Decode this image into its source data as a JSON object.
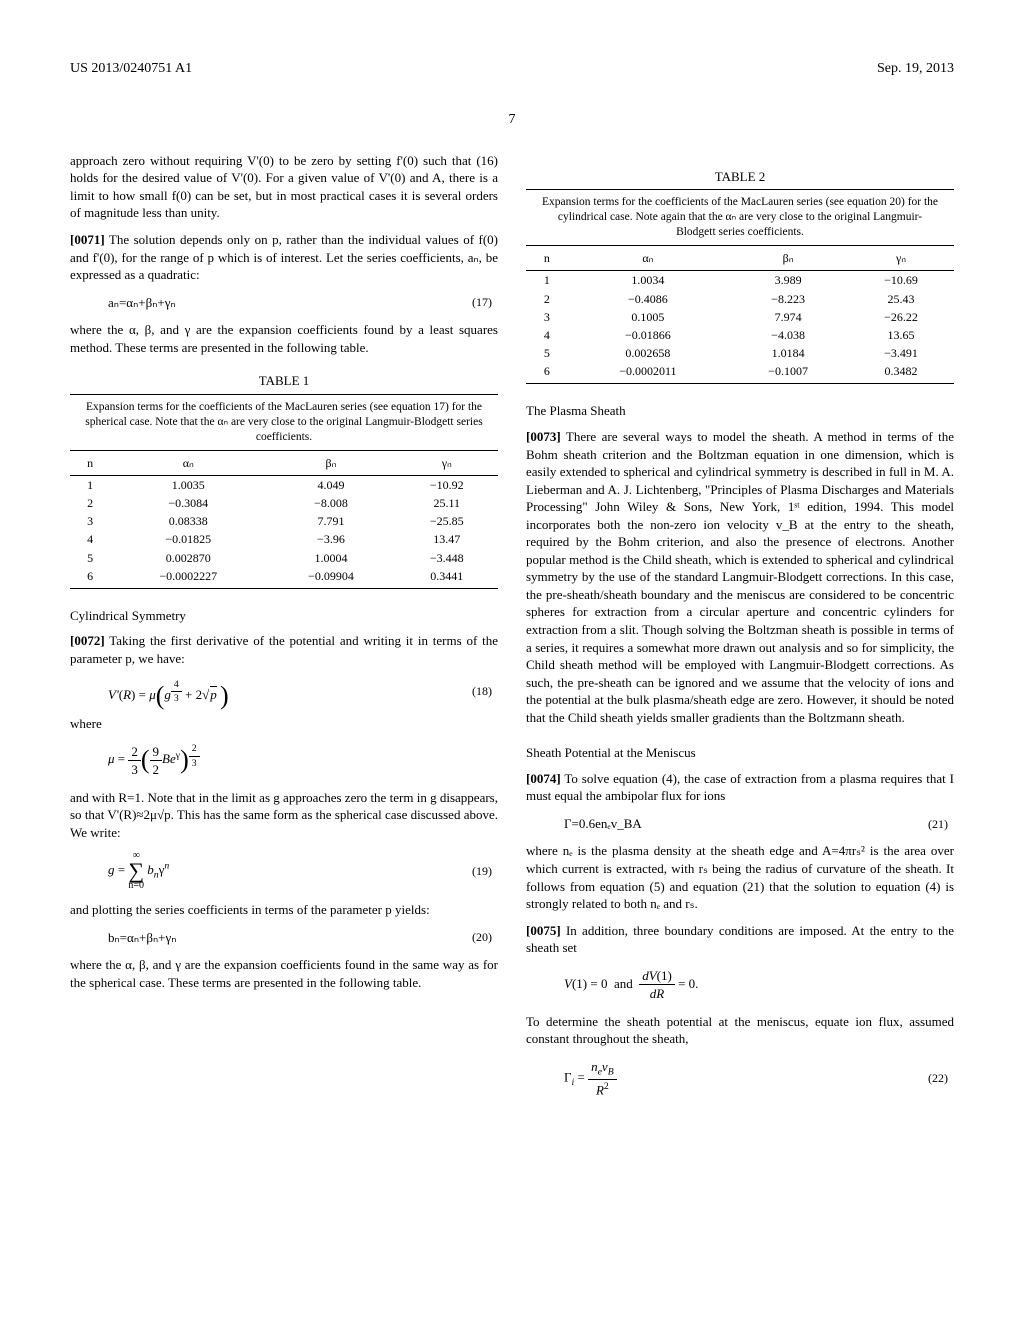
{
  "header": {
    "left": "US 2013/0240751 A1",
    "right": "Sep. 19, 2013",
    "page": "7"
  },
  "left_col": {
    "p0": "approach zero without requiring V'(0) to be zero by setting f'(0) such that (16) holds for the desired value of V'(0). For a given value of V'(0) and A, there is a limit to how small f(0) can be set, but in most practical cases it is several orders of magnitude less than unity.",
    "p1_num": "[0071]",
    "p1": " The solution depends only on p, rather than the individual values of f(0) and f'(0), for the range of p which is of interest. Let the series coefficients, aₙ, be expressed as a quadratic:",
    "eq17": "aₙ=αₙ+βₙ+γₙ",
    "eq17_num": "(17)",
    "p2": "where the α, β, and γ are the expansion coefficients found by a least squares method. These terms are presented in the following table.",
    "table1_title": "TABLE 1",
    "table1_caption": "Expansion terms for the coefficients of the MacLauren series (see equation 17) for the spherical case. Note that the αₙ are very close to the original Langmuir-Blodgett series coefficients.",
    "table1": {
      "headers": [
        "n",
        "αₙ",
        "βₙ",
        "γₙ"
      ],
      "rows": [
        [
          "1",
          "1.0035",
          "4.049",
          "−10.92"
        ],
        [
          "2",
          "−0.3084",
          "−8.008",
          "25.11"
        ],
        [
          "3",
          "0.08338",
          "7.791",
          "−25.85"
        ],
        [
          "4",
          "−0.01825",
          "−3.96",
          "13.47"
        ],
        [
          "5",
          "0.002870",
          "1.0004",
          "−3.448"
        ],
        [
          "6",
          "−0.0002227",
          "−0.09904",
          "0.3441"
        ]
      ]
    },
    "subsec1": "Cylindrical Symmetry",
    "p3_num": "[0072]",
    "p3": " Taking the first derivative of the potential and writing it in terms of the parameter p, we have:",
    "eq18_num": "(18)",
    "p4": "where",
    "eq19_pre": "and with R=1. Note that in the limit as g approaches zero the term in g disappears, so that V'(R)≈2μ√p. This has the same form as the spherical case discussed above. We write:",
    "eq19_num": "(19)",
    "p5": "and plotting the series coefficients in terms of the parameter p yields:",
    "eq20": "bₙ=αₙ+βₙ+γₙ",
    "eq20_num": "(20)",
    "p6": "where the α, β, and γ are the expansion coefficients found in the same way as for the spherical case. These terms are presented in the following table."
  },
  "right_col": {
    "table2_title": "TABLE 2",
    "table2_caption": "Expansion terms for the coefficients of the MacLauren series (see equation 20) for the cylindrical case. Note again that the αₙ are very close to the original Langmuir-Blodgett series coefficients.",
    "table2": {
      "headers": [
        "n",
        "αₙ",
        "βₙ",
        "γₙ"
      ],
      "rows": [
        [
          "1",
          "1.0034",
          "3.989",
          "−10.69"
        ],
        [
          "2",
          "−0.4086",
          "−8.223",
          "25.43"
        ],
        [
          "3",
          "0.1005",
          "7.974",
          "−26.22"
        ],
        [
          "4",
          "−0.01866",
          "−4.038",
          "13.65"
        ],
        [
          "5",
          "0.002658",
          "1.0184",
          "−3.491"
        ],
        [
          "6",
          "−0.0002011",
          "−0.1007",
          "0.3482"
        ]
      ]
    },
    "subsec2": "The Plasma Sheath",
    "p7_num": "[0073]",
    "p7": " There are several ways to model the sheath. A method in terms of the Bohm sheath criterion and the Boltzman equation in one dimension, which is easily extended to spherical and cylindrical symmetry is described in full in M. A. Lieberman and A. J. Lichtenberg, \"Principles of Plasma Discharges and Materials Processing\" John Wiley & Sons, New York, 1ˢᵗ edition, 1994. This model incorporates both the non-zero ion velocity v_B at the entry to the sheath, required by the Bohm criterion, and also the presence of electrons. Another popular method is the Child sheath, which is extended to spherical and cylindrical symmetry by the use of the standard Langmuir-Blodgett corrections. In this case, the pre-sheath/sheath boundary and the meniscus are considered to be concentric spheres for extraction from a circular aperture and concentric cylinders for extraction from a slit. Though solving the Boltzman sheath is possible in terms of a series, it requires a somewhat more drawn out analysis and so for simplicity, the Child sheath method will be employed with Langmuir-Blodgett corrections. As such, the pre-sheath can be ignored and we assume that the velocity of ions and the potential at the bulk plasma/sheath edge are zero. However, it should be noted that the Child sheath yields smaller gradients than the Boltzmann sheath.",
    "subsec3": "Sheath Potential at the Meniscus",
    "p8_num": "[0074]",
    "p8": " To solve equation (4), the case of extraction from a plasma requires that I must equal the ambipolar flux for ions",
    "eq21": "Γ=0.6enₑv_BA",
    "eq21_num": "(21)",
    "p9": "where nₑ is the plasma density at the sheath edge and A=4πrₛ² is the area over which current is extracted, with rₛ being the radius of curvature of the sheath. It follows from equation (5) and equation (21) that the solution to equation (4) is strongly related to both nₑ and rₛ.",
    "p10_num": "[0075]",
    "p10": " In addition, three boundary conditions are imposed. At the entry to the sheath set",
    "p11": "To determine the sheath potential at the meniscus, equate ion flux, assumed constant throughout the sheath,",
    "eq22_num": "(22)"
  }
}
